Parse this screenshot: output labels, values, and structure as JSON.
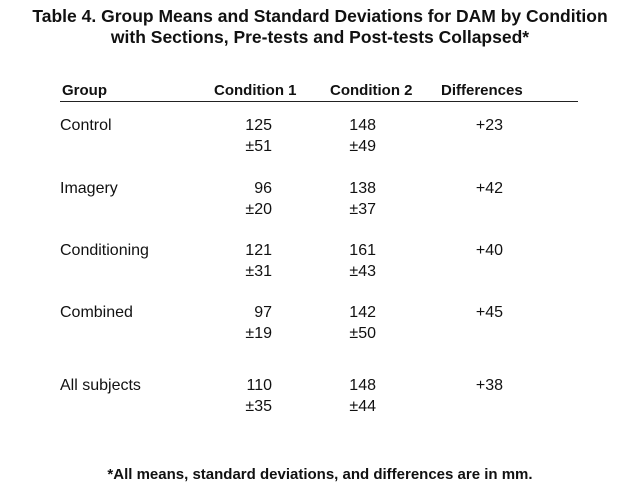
{
  "title": {
    "line1": "Table 4. Group Means and Standard Deviations for DAM by Condition",
    "line2": "with Sections, Pre-tests and Post-tests Collapsed*"
  },
  "columns": [
    "Group",
    "Condition 1",
    "Condition 2",
    "Differences"
  ],
  "rows": [
    {
      "group": "Control",
      "c1_mean": "125",
      "c1_sd": "±51",
      "c2_mean": "148",
      "c2_sd": "±49",
      "diff": "+23"
    },
    {
      "group": "Imagery",
      "c1_mean": "96",
      "c1_sd": "±20",
      "c2_mean": "138",
      "c2_sd": "±37",
      "diff": "+42"
    },
    {
      "group": "Conditioning",
      "c1_mean": "121",
      "c1_sd": "±31",
      "c2_mean": "161",
      "c2_sd": "±43",
      "diff": "+40"
    },
    {
      "group": "Combined",
      "c1_mean": "97",
      "c1_sd": "±19",
      "c2_mean": "142",
      "c2_sd": "±50",
      "diff": "+45"
    },
    {
      "group": "All subjects",
      "c1_mean": "110",
      "c1_sd": "±35",
      "c2_mean": "148",
      "c2_sd": "±44",
      "diff": "+38"
    }
  ],
  "footnote": "*All means, standard deviations, and differences are in mm."
}
